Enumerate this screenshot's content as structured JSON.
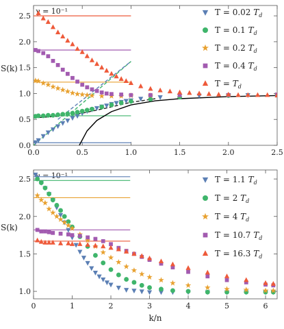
{
  "chart_data": [
    {
      "type": "scatter",
      "ylabel": "S(k)",
      "xlabel": "",
      "annotation": "γ = 10⁻¹",
      "xlim": [
        0,
        2.5
      ],
      "ylim": [
        0,
        2.7
      ],
      "x_ticks": [
        "0.0",
        "0.5",
        "1.0",
        "1.5",
        "2.0",
        "2.5"
      ],
      "y_ticks": [
        "0.0",
        "0.5",
        "1.0",
        "1.5",
        "2.0",
        "2.5"
      ],
      "x_tick_values": [
        0,
        0.5,
        1.0,
        1.5,
        2.0,
        2.5
      ],
      "y_tick_values": [
        0,
        0.5,
        1.0,
        1.5,
        2.0,
        2.5
      ],
      "legend_position": "right",
      "series": [
        {
          "name": "T = 0.02 T_d",
          "label_main": "T = 0.02 ",
          "label_sub": "T",
          "label_subscript": "d",
          "color": "#5b7fb4",
          "marker": "tri-down",
          "plateau": 0.05,
          "x": [
            0.02,
            0.05,
            0.1,
            0.15,
            0.2,
            0.25,
            0.3,
            0.35,
            0.4,
            0.45,
            0.5,
            0.55,
            0.6,
            0.65,
            0.7,
            0.75,
            0.8,
            0.85,
            0.9,
            0.95,
            1.0,
            1.1,
            1.2,
            1.3,
            1.5,
            1.7,
            2.0,
            2.2,
            2.5
          ],
          "y": [
            0.06,
            0.1,
            0.18,
            0.25,
            0.31,
            0.37,
            0.43,
            0.48,
            0.53,
            0.57,
            0.62,
            0.66,
            0.69,
            0.72,
            0.75,
            0.77,
            0.8,
            0.82,
            0.84,
            0.86,
            0.87,
            0.9,
            0.92,
            0.93,
            0.95,
            0.96,
            0.97,
            0.97,
            0.98
          ]
        },
        {
          "name": "T = 0.1 T_d",
          "label_main": "T = 0.1 ",
          "label_sub": "T",
          "label_subscript": "d",
          "color": "#3fb56b",
          "marker": "circle",
          "plateau": 0.57,
          "x": [
            0.02,
            0.05,
            0.1,
            0.15,
            0.2,
            0.25,
            0.3,
            0.35,
            0.4,
            0.45,
            0.5,
            0.55,
            0.6,
            0.7,
            0.8,
            0.9,
            1.0,
            1.2,
            1.5,
            2.0,
            2.5
          ],
          "y": [
            0.56,
            0.57,
            0.57,
            0.58,
            0.58,
            0.59,
            0.6,
            0.61,
            0.62,
            0.64,
            0.66,
            0.68,
            0.7,
            0.74,
            0.78,
            0.82,
            0.85,
            0.89,
            0.93,
            0.96,
            0.97
          ]
        },
        {
          "name": "T = 0.2 T_d",
          "label_main": "T = 0.2 ",
          "label_sub": "T",
          "label_subscript": "d",
          "color": "#e8a130",
          "marker": "star",
          "plateau": 1.22,
          "x": [
            0.02,
            0.05,
            0.1,
            0.15,
            0.2,
            0.25,
            0.3,
            0.35,
            0.4,
            0.45,
            0.5,
            0.55,
            0.6,
            0.7,
            0.8,
            0.9,
            1.0,
            1.2,
            1.5,
            2.0,
            2.5
          ],
          "y": [
            1.25,
            1.24,
            1.2,
            1.17,
            1.13,
            1.1,
            1.07,
            1.04,
            1.01,
            0.99,
            0.98,
            0.97,
            0.96,
            0.95,
            0.95,
            0.95,
            0.96,
            0.96,
            0.97,
            0.97,
            0.98
          ]
        },
        {
          "name": "T = 0.4 T_d",
          "label_main": "T = 0.4 ",
          "label_sub": "T",
          "label_subscript": "d",
          "color": "#a25bb0",
          "marker": "square",
          "plateau": 1.84,
          "x": [
            0.02,
            0.05,
            0.1,
            0.15,
            0.2,
            0.25,
            0.3,
            0.35,
            0.4,
            0.45,
            0.5,
            0.55,
            0.6,
            0.65,
            0.7,
            0.75,
            0.8,
            0.9,
            1.0,
            1.2,
            1.5,
            2.0,
            2.5
          ],
          "y": [
            1.84,
            1.82,
            1.78,
            1.72,
            1.63,
            1.55,
            1.46,
            1.38,
            1.3,
            1.23,
            1.17,
            1.12,
            1.08,
            1.05,
            1.02,
            1.0,
            0.99,
            0.98,
            0.97,
            0.97,
            0.97,
            0.97,
            0.98
          ]
        },
        {
          "name": "T = T_d",
          "label_main": "T = ",
          "label_sub": "T",
          "label_subscript": "d",
          "color": "#ee5a3a",
          "marker": "tri-up",
          "plateau": 2.5,
          "x": [
            0.05,
            0.1,
            0.15,
            0.2,
            0.25,
            0.3,
            0.35,
            0.4,
            0.45,
            0.5,
            0.55,
            0.6,
            0.65,
            0.7,
            0.75,
            0.8,
            0.85,
            0.9,
            0.95,
            1.0,
            1.1,
            1.2,
            1.3,
            1.4,
            1.5,
            1.6,
            1.7,
            1.8,
            1.9,
            2.0,
            2.1,
            2.2,
            2.3,
            2.4,
            2.5
          ],
          "y": [
            2.55,
            2.45,
            2.38,
            2.28,
            2.18,
            2.1,
            2.02,
            1.95,
            1.86,
            1.8,
            1.72,
            1.64,
            1.57,
            1.5,
            1.44,
            1.38,
            1.33,
            1.28,
            1.24,
            1.2,
            1.14,
            1.09,
            1.06,
            1.04,
            1.02,
            1.01,
            1.0,
            0.99,
            0.98,
            0.98,
            0.97,
            0.97,
            0.97,
            0.97,
            0.96
          ]
        }
      ],
      "curves": [
        {
          "name": "dashed-green-line",
          "style": "dashed",
          "color": "#3fb56b",
          "x": [
            0.0,
            1.0
          ],
          "y": [
            0.0,
            1.62
          ]
        },
        {
          "name": "dashed-blue-line",
          "style": "dashed",
          "color": "#5b7fb4",
          "x": [
            0.25,
            1.0
          ],
          "y": [
            0.5,
            1.62
          ]
        },
        {
          "name": "dashed-black-line",
          "style": "dashed",
          "color": "#222222",
          "x": [
            0.0,
            0.25,
            0.5,
            0.75,
            1.0,
            1.25
          ],
          "y": [
            0.53,
            0.56,
            0.62,
            0.72,
            0.83,
            0.9
          ]
        },
        {
          "name": "solid-black-curve",
          "style": "solid",
          "color": "#000000",
          "x": [
            0.47,
            0.55,
            0.65,
            0.8,
            1.0,
            1.25,
            1.5,
            2.0,
            2.5
          ],
          "y": [
            0.0,
            0.28,
            0.48,
            0.65,
            0.78,
            0.86,
            0.9,
            0.94,
            0.96
          ]
        }
      ]
    },
    {
      "type": "scatter",
      "ylabel": "S(k)",
      "xlabel": "k/n",
      "annotation": "γ = 10⁻¹",
      "xlim": [
        0,
        6.3
      ],
      "ylim": [
        0.9,
        2.62
      ],
      "x_ticks": [
        "0",
        "1",
        "2",
        "3",
        "4",
        "5",
        "6"
      ],
      "y_ticks": [
        "1.0",
        "1.5",
        "2.0",
        "2.5"
      ],
      "x_tick_values": [
        0,
        1,
        2,
        3,
        4,
        5,
        6
      ],
      "y_tick_values": [
        1.0,
        1.5,
        2.0,
        2.5
      ],
      "legend_position": "right",
      "series": [
        {
          "name": "T = 1.1 T_d",
          "label_main": "T = 1.1 ",
          "label_sub": "T",
          "label_subscript": "d",
          "color": "#5b7fb4",
          "marker": "tri-down",
          "plateau": 2.53,
          "plateau_xmax": 2.5,
          "x": [
            0.05,
            0.1,
            0.2,
            0.3,
            0.4,
            0.5,
            0.6,
            0.7,
            0.8,
            0.9,
            1.0,
            1.1,
            1.2,
            1.3,
            1.4,
            1.5,
            1.6,
            1.7,
            1.8,
            1.9,
            2.0,
            2.2,
            2.4,
            2.6,
            2.8,
            3.0,
            3.3,
            3.6,
            4.0,
            4.5,
            5.0,
            5.5,
            6.0,
            6.2
          ],
          "y": [
            2.56,
            2.52,
            2.45,
            2.38,
            2.3,
            2.22,
            2.12,
            2.02,
            1.92,
            1.82,
            1.72,
            1.62,
            1.53,
            1.45,
            1.38,
            1.31,
            1.25,
            1.2,
            1.16,
            1.12,
            1.09,
            1.05,
            1.02,
            1.01,
            1.0,
            0.99,
            0.99,
            0.99,
            0.99,
            0.99,
            0.99,
            0.99,
            0.99,
            0.99
          ]
        },
        {
          "name": "T = 2 T_d",
          "label_main": "T = 2 ",
          "label_sub": "T",
          "label_subscript": "d",
          "color": "#3fb56b",
          "marker": "circle",
          "plateau": 2.48,
          "plateau_xmax": 2.5,
          "x": [
            0.1,
            0.2,
            0.3,
            0.4,
            0.5,
            0.6,
            0.7,
            0.8,
            0.9,
            1.0,
            1.2,
            1.4,
            1.6,
            1.8,
            2.0,
            2.2,
            2.4,
            2.6,
            2.8,
            3.0,
            3.3,
            3.6,
            4.0,
            4.5,
            5.0,
            5.5,
            6.0,
            6.2
          ],
          "y": [
            2.5,
            2.45,
            2.38,
            2.3,
            2.22,
            2.15,
            2.08,
            2.0,
            1.93,
            1.86,
            1.73,
            1.6,
            1.48,
            1.38,
            1.29,
            1.22,
            1.16,
            1.12,
            1.08,
            1.05,
            1.03,
            1.01,
            1.0,
            0.99,
            0.99,
            0.99,
            0.99,
            0.99
          ]
        },
        {
          "name": "T = 4 T_d",
          "label_main": "T = 4 ",
          "label_sub": "T",
          "label_subscript": "d",
          "color": "#e8a130",
          "marker": "star",
          "plateau": 2.25,
          "plateau_xmax": 2.5,
          "x": [
            0.1,
            0.2,
            0.3,
            0.4,
            0.5,
            0.6,
            0.7,
            0.8,
            0.9,
            1.0,
            1.2,
            1.4,
            1.6,
            1.8,
            2.0,
            2.2,
            2.4,
            2.6,
            2.8,
            3.0,
            3.3,
            3.6,
            4.0,
            4.5,
            5.0,
            5.5,
            6.0,
            6.2
          ],
          "y": [
            2.28,
            2.22,
            2.18,
            2.1,
            2.05,
            2.0,
            1.96,
            1.92,
            1.88,
            1.84,
            1.76,
            1.68,
            1.6,
            1.52,
            1.45,
            1.39,
            1.33,
            1.28,
            1.23,
            1.19,
            1.15,
            1.11,
            1.08,
            1.05,
            1.03,
            1.02,
            1.01,
            1.01
          ]
        },
        {
          "name": "T = 10.7 T_d",
          "label_main": "T = 10.7 ",
          "label_sub": "T",
          "label_subscript": "d",
          "color": "#a25bb0",
          "marker": "square",
          "plateau": 1.82,
          "plateau_xmax": 2.5,
          "x": [
            0.1,
            0.2,
            0.3,
            0.4,
            0.5,
            0.7,
            0.9,
            1.0,
            1.2,
            1.4,
            1.6,
            1.8,
            2.0,
            2.2,
            2.4,
            2.6,
            2.8,
            3.0,
            3.3,
            3.6,
            4.0,
            4.5,
            5.0,
            5.5,
            6.0,
            6.2
          ],
          "y": [
            1.82,
            1.8,
            1.8,
            1.79,
            1.78,
            1.77,
            1.76,
            1.75,
            1.74,
            1.72,
            1.7,
            1.67,
            1.63,
            1.58,
            1.54,
            1.5,
            1.46,
            1.42,
            1.37,
            1.32,
            1.26,
            1.2,
            1.15,
            1.12,
            1.09,
            1.08
          ]
        },
        {
          "name": "T = 16.3 T_d",
          "label_main": "T = 16.3 ",
          "label_sub": "T",
          "label_subscript": "d",
          "color": "#ee5a3a",
          "marker": "tri-up",
          "plateau": 1.67,
          "plateau_xmax": 2.5,
          "x": [
            0.1,
            0.2,
            0.3,
            0.4,
            0.5,
            0.7,
            0.9,
            1.0,
            1.2,
            1.4,
            1.6,
            1.8,
            2.0,
            2.2,
            2.4,
            2.6,
            2.8,
            3.0,
            3.3,
            3.6,
            4.0,
            4.5,
            5.0,
            5.5,
            6.0,
            6.2
          ],
          "y": [
            1.68,
            1.66,
            1.65,
            1.65,
            1.65,
            1.64,
            1.64,
            1.63,
            1.63,
            1.62,
            1.61,
            1.6,
            1.58,
            1.56,
            1.53,
            1.5,
            1.47,
            1.44,
            1.4,
            1.36,
            1.31,
            1.25,
            1.2,
            1.15,
            1.11,
            1.1
          ]
        }
      ]
    }
  ]
}
